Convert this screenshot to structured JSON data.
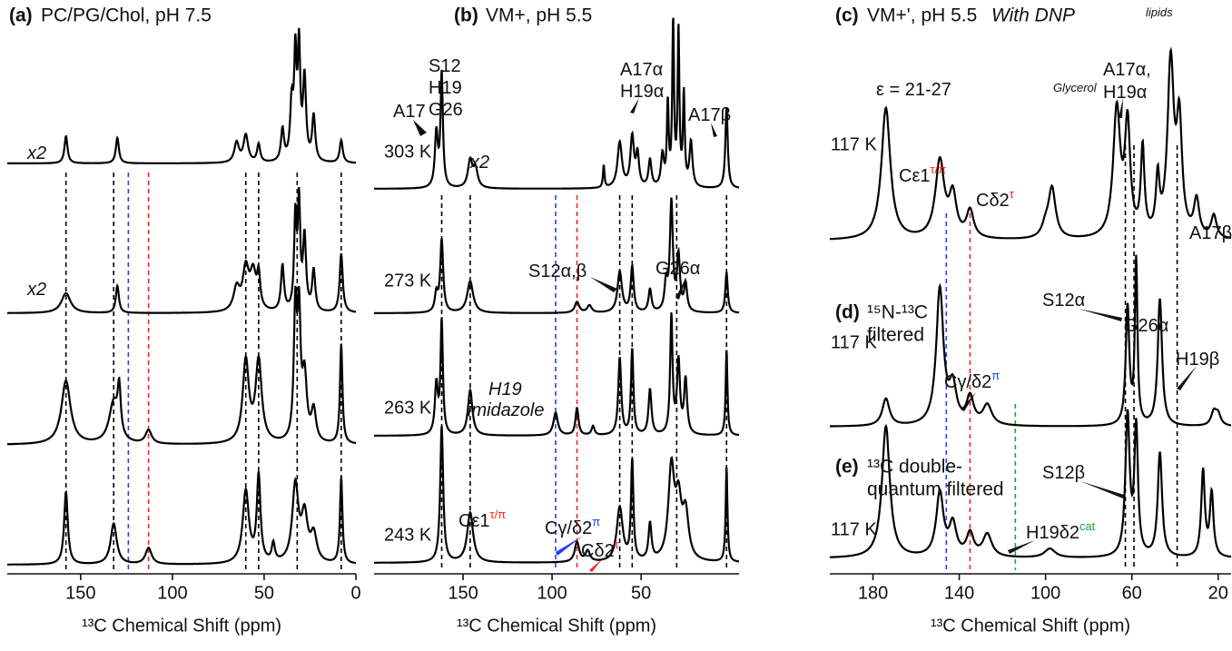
{
  "chart_data": [
    {
      "type": "line",
      "panel_label": "(a)",
      "title": "PC/PG/Chol, pH 7.5",
      "xlabel": "¹³C Chemical Shift (ppm)",
      "xlim": [
        190,
        0
      ],
      "xticks": [
        150,
        100,
        50,
        0
      ],
      "reference_lines": {
        "ppm": [
          158,
          132,
          124,
          113,
          60,
          53,
          32,
          8
        ],
        "color": [
          "#000000",
          "#000000",
          "#1f3fff",
          "#ff2020",
          "#000000",
          "#000000",
          "#000000",
          "#000000"
        ]
      },
      "annotations": [
        {
          "text": "x2",
          "italic": true
        },
        {
          "text": "x2",
          "italic": true
        }
      ],
      "series": [
        {
          "color": "#000000",
          "ppm": [
            158,
            130,
            65,
            60,
            53,
            40,
            35,
            33,
            31,
            28,
            23,
            8
          ],
          "height": [
            30,
            28,
            22,
            30,
            20,
            35,
            60,
            110,
            120,
            90,
            50,
            25
          ],
          "width": [
            1,
            1,
            1.5,
            1.5,
            1,
            1,
            1,
            0.8,
            0.8,
            1,
            1,
            1
          ]
        },
        {
          "color": "#000000",
          "ppm": [
            158,
            130,
            65,
            60,
            56,
            53,
            40,
            33,
            31,
            28,
            23,
            8
          ],
          "height": [
            22,
            30,
            25,
            45,
            40,
            35,
            50,
            100,
            115,
            80,
            45,
            65
          ],
          "width": [
            3,
            1,
            2,
            2,
            2,
            1,
            1,
            0.8,
            0.8,
            1,
            1,
            1
          ]
        },
        {
          "color": "#000000",
          "ppm": [
            158,
            132,
            129,
            113,
            60,
            53,
            33,
            31,
            28,
            23,
            8
          ],
          "height": [
            70,
            45,
            50,
            15,
            90,
            90,
            140,
            130,
            70,
            35,
            110
          ],
          "width": [
            3,
            3,
            1,
            2,
            2,
            2,
            1,
            1,
            1.5,
            1.5,
            0.8
          ]
        },
        {
          "color": "#000000",
          "ppm": [
            158,
            132,
            113,
            60,
            53,
            45,
            33,
            28,
            23,
            8
          ],
          "height": [
            80,
            45,
            18,
            80,
            95,
            20,
            85,
            50,
            30,
            95
          ],
          "width": [
            1.2,
            2,
            2,
            2,
            1.2,
            1,
            2,
            2,
            2,
            0.8
          ]
        }
      ]
    },
    {
      "type": "line",
      "panel_label": "(b)",
      "title": "VM+, pH 5.5",
      "xlabel": "¹³C Chemical Shift (ppm)",
      "xlim": [
        200,
        -5
      ],
      "xticks": [
        150,
        100,
        50
      ],
      "reference_lines": {
        "ppm": [
          162,
          146,
          98,
          86,
          62,
          55,
          30,
          2
        ],
        "color": [
          "#000000",
          "#000000",
          "#1f3fff",
          "#ff2020",
          "#000000",
          "#000000",
          "#000000",
          "#000000"
        ]
      },
      "annotations": [
        {
          "text": "A17"
        },
        {
          "text": "S12"
        },
        {
          "text": "H19"
        },
        {
          "text": "G26"
        },
        {
          "text": "A17α"
        },
        {
          "text": "H19α"
        },
        {
          "text": "A17β"
        },
        {
          "text": "x2",
          "italic": true
        },
        {
          "text": "S12α,β"
        },
        {
          "text": "G26α"
        },
        {
          "text": "H19",
          "italic": true
        },
        {
          "text": "imidazole",
          "italic": true
        },
        {
          "text": "Cε1",
          "sup": "τ/π",
          "sup_color": "#ff2020"
        },
        {
          "text": "Cγ/δ2",
          "sup": "π",
          "color": "#1f3fff"
        },
        {
          "text": "Cδ2",
          "sup": "τ",
          "color": "#ff2020"
        }
      ],
      "series": [
        {
          "name": "303 K",
          "color": "#000000",
          "ppm": [
            165,
            162,
            146,
            143,
            71,
            62,
            55,
            52,
            45,
            38,
            35,
            32,
            29,
            26,
            22,
            2
          ],
          "height": [
            60,
            125,
            30,
            20,
            25,
            50,
            55,
            35,
            30,
            35,
            90,
            180,
            170,
            100,
            50,
            90
          ],
          "width": [
            1,
            0.8,
            1.5,
            1.5,
            0.5,
            1.5,
            1.2,
            1,
            1,
            1,
            0.6,
            0.6,
            0.6,
            0.6,
            1,
            0.8
          ]
        },
        {
          "name": "273 K",
          "color": "#000000",
          "ppm": [
            165,
            162,
            146,
            86,
            79,
            62,
            55,
            45,
            36,
            33,
            29,
            25,
            2
          ],
          "height": [
            20,
            80,
            35,
            12,
            8,
            45,
            50,
            25,
            30,
            120,
            60,
            30,
            45
          ],
          "width": [
            1,
            1,
            2,
            1.5,
            1.5,
            1.5,
            1,
            1,
            1,
            1,
            1,
            1,
            0.8
          ]
        },
        {
          "name": "263 K",
          "color": "#000000",
          "ppm": [
            165,
            162,
            146,
            98,
            86,
            77,
            62,
            55,
            45,
            33,
            29,
            25,
            2
          ],
          "height": [
            55,
            125,
            50,
            25,
            30,
            10,
            85,
            95,
            50,
            130,
            80,
            60,
            95
          ],
          "width": [
            1,
            0.8,
            1.5,
            1.5,
            1,
            1,
            1,
            0.8,
            1,
            0.8,
            1,
            1,
            0.6
          ]
        },
        {
          "name": "243 K",
          "color": "#000000",
          "ppm": [
            162,
            146,
            86,
            80,
            62,
            55,
            45,
            33,
            29,
            25,
            2
          ],
          "height": [
            150,
            55,
            22,
            12,
            60,
            110,
            40,
            100,
            60,
            50,
            105
          ],
          "width": [
            1,
            2,
            1.5,
            1.5,
            2,
            0.8,
            1,
            2,
            2,
            2,
            0.6
          ]
        }
      ]
    },
    {
      "type": "line",
      "xlabel": "¹³C Chemical Shift (ppm)",
      "xlim": [
        200,
        14
      ],
      "xticks": [
        180,
        140,
        100,
        60,
        20
      ],
      "reference_lines": {
        "ppm": [
          146,
          135,
          114,
          63,
          59,
          39
        ],
        "color": [
          "#1f3fff",
          "#ff2020",
          "#20a040",
          "#000000",
          "#000000",
          "#000000"
        ]
      },
      "annotations": [
        {
          "text": "ε = 21-27"
        },
        {
          "text": "lipids",
          "italic": true
        },
        {
          "text": "Glycerol",
          "italic": true
        },
        {
          "text": "A17α,"
        },
        {
          "text": "H19α"
        },
        {
          "text": "A17β"
        },
        {
          "text": "Cε1",
          "sup": "τ/π",
          "sup_color": "#ff2020"
        },
        {
          "text": "Cδ2",
          "sup": "τ",
          "color": "#ff2020"
        },
        {
          "text": "S12α"
        },
        {
          "text": "G26α"
        },
        {
          "text": "H19β"
        },
        {
          "text": "Cγ/δ2",
          "sup": "π",
          "color": "#1f3fff"
        },
        {
          "text": "S12β"
        },
        {
          "text": "H19δ2",
          "sup": "cat",
          "color": "#20a040"
        }
      ],
      "series": [
        {
          "panel_label": "(c)",
          "title_lines": [
            "VM+', pH 5.5"
          ],
          "title_note": "With DNP",
          "name": "117 K",
          "color": "#000000",
          "ppm": [
            174,
            149,
            143,
            135,
            100,
            97,
            67,
            62,
            55,
            48,
            42,
            38,
            30,
            22
          ],
          "height": [
            145,
            85,
            45,
            30,
            12,
            55,
            140,
            120,
            95,
            60,
            190,
            120,
            40,
            25
          ],
          "width": [
            2.5,
            2.5,
            2,
            2,
            2,
            2,
            2,
            1.5,
            1,
            1,
            1.8,
            1.5,
            1.5,
            1.5
          ]
        },
        {
          "panel_label": "(d)",
          "title_lines": [
            "¹⁵N-¹³C",
            "filtered"
          ],
          "name": "117 K",
          "color": "#000000",
          "ppm": [
            174,
            149,
            143,
            135,
            127,
            62,
            58,
            47,
            22,
            20
          ],
          "height": [
            30,
            150,
            40,
            30,
            22,
            130,
            180,
            140,
            15,
            12
          ],
          "width": [
            2,
            2,
            2,
            2,
            2.5,
            1,
            0.7,
            1.2,
            1.5,
            1.5
          ]
        },
        {
          "panel_label": "(e)",
          "title_lines": [
            "¹³C double-",
            "quantum filtered"
          ],
          "name": "117 K",
          "color": "#000000",
          "ppm": [
            174,
            149,
            143,
            135,
            127,
            98,
            62,
            58,
            47,
            27,
            23
          ],
          "height": [
            145,
            70,
            35,
            25,
            25,
            10,
            155,
            140,
            115,
            95,
            70
          ],
          "width": [
            2.2,
            2,
            2,
            2,
            2.5,
            3,
            1.2,
            1,
            1.2,
            1,
            1
          ]
        }
      ]
    }
  ]
}
